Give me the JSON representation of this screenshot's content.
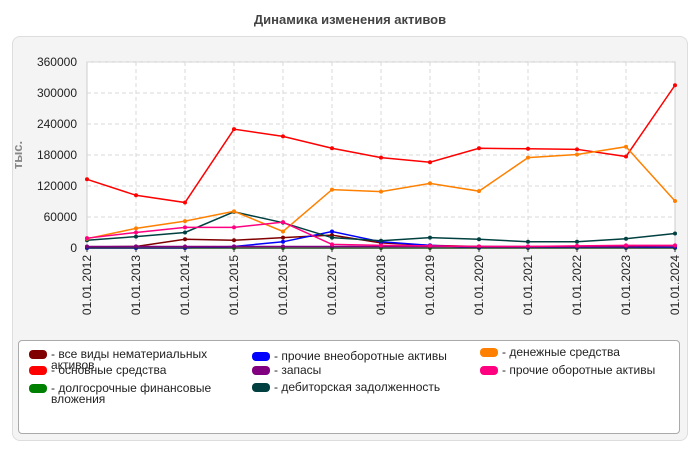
{
  "chart_data": {
    "type": "line",
    "title": "Динамика изменения активов",
    "ylabel": "тыс.",
    "xlabel": "",
    "ylim": [
      0,
      360000
    ],
    "yticks": [
      0,
      60000,
      120000,
      180000,
      240000,
      300000,
      360000
    ],
    "ytick_labels": [
      "0",
      "60000",
      "120000",
      "180000",
      "240000",
      "300000",
      "360000"
    ],
    "categories": [
      "01.01.2012",
      "01.01.2013",
      "01.01.2014",
      "01.01.2015",
      "01.01.2016",
      "01.01.2017",
      "01.01.2018",
      "01.01.2019",
      "01.01.2020",
      "01.01.2021",
      "01.01.2022",
      "01.01.2023",
      "01.01.2024"
    ],
    "grid": true,
    "legend_position": "bottom",
    "series": [
      {
        "name": "все виды нематериальных активов",
        "color": "#800000",
        "values": [
          2000,
          3000,
          17000,
          15000,
          20000,
          25000,
          10000,
          5000,
          3000,
          2000,
          2000,
          1000,
          1000
        ]
      },
      {
        "name": "основные средства",
        "color": "#ff0000",
        "values": [
          133000,
          102000,
          88000,
          230000,
          216000,
          193000,
          175000,
          166000,
          193000,
          192000,
          191000,
          177000,
          315000
        ]
      },
      {
        "name": "долгосрочные финансовые вложения",
        "color": "#008000",
        "values": [
          0,
          0,
          0,
          0,
          0,
          0,
          0,
          0,
          0,
          0,
          0,
          0,
          0
        ]
      },
      {
        "name": "прочие внеоборотные активы",
        "color": "#0000ff",
        "values": [
          0,
          0,
          0,
          3000,
          12000,
          32000,
          12000,
          5000,
          1000,
          1000,
          1000,
          1000,
          1000
        ]
      },
      {
        "name": "запасы",
        "color": "#800080",
        "values": [
          3000,
          3000,
          3000,
          3000,
          3000,
          3000,
          3000,
          3000,
          3000,
          3000,
          3000,
          3000,
          4000
        ]
      },
      {
        "name": "дебиторская задолженность",
        "color": "#004040",
        "values": [
          15000,
          22000,
          30000,
          70000,
          49000,
          20000,
          14000,
          20000,
          17000,
          12000,
          12000,
          18000,
          28000
        ]
      },
      {
        "name": "денежные средства",
        "color": "#ff8000",
        "values": [
          18000,
          38000,
          52000,
          71000,
          32000,
          113000,
          109000,
          125000,
          110000,
          175000,
          181000,
          196000,
          91000
        ]
      },
      {
        "name": "прочие оборотные активы",
        "color": "#ff0080",
        "values": [
          19000,
          30000,
          40000,
          40000,
          50000,
          7000,
          5000,
          4000,
          3000,
          3000,
          4000,
          5000,
          5000
        ]
      }
    ]
  }
}
